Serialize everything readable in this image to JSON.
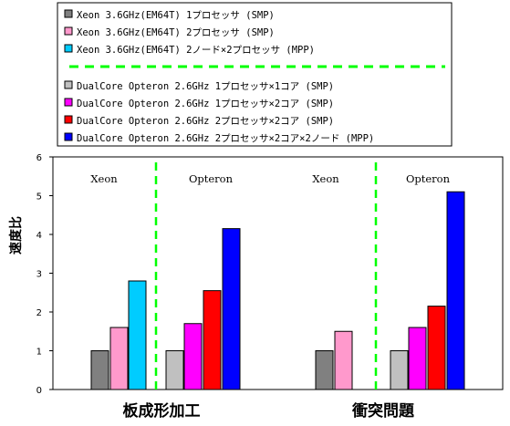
{
  "chart_data": {
    "type": "bar",
    "ylabel": "速度比",
    "ylim": [
      0,
      6
    ],
    "yticks": [
      "0",
      "1",
      "2",
      "3",
      "4",
      "5",
      "6"
    ],
    "grid": false,
    "legend_position": "top",
    "categories": [
      "板成形加工",
      "衝突問題"
    ],
    "group_labels": [
      {
        "category": "板成形加工",
        "side": "left",
        "text": "Xeon"
      },
      {
        "category": "板成形加工",
        "side": "right",
        "text": "Opteron"
      },
      {
        "category": "衝突問題",
        "side": "left",
        "text": "Xeon"
      },
      {
        "category": "衝突問題",
        "side": "right",
        "text": "Opteron"
      }
    ],
    "series": [
      {
        "name": "Xeon 3.6GHz(EM64T)  1プロセッサ (SMP)",
        "color": "#808080",
        "values": [
          1.0,
          1.0
        ]
      },
      {
        "name": "Xeon 3.6GHz(EM64T)  2プロセッサ (SMP)",
        "color": "#ff99cc",
        "values": [
          1.6,
          1.5
        ]
      },
      {
        "name": "Xeon 3.6GHz(EM64T)  2ノード×2プロセッサ (MPP)",
        "color": "#00ccff",
        "values": [
          2.8,
          null
        ]
      },
      {
        "name": "DualCore Opteron 2.6GHz  1プロセッサ×1コア (SMP)",
        "color": "#c0c0c0",
        "values": [
          1.0,
          1.0
        ]
      },
      {
        "name": "DualCore Opteron 2.6GHz  1プロセッサ×2コア (SMP)",
        "color": "#ff00ff",
        "values": [
          1.7,
          1.6
        ]
      },
      {
        "name": "DualCore Opteron 2.6GHz  2プロセッサ×2コア (SMP)",
        "color": "#ff0000",
        "values": [
          2.55,
          2.15
        ]
      },
      {
        "name": "DualCore Opteron 2.6GHz  2プロセッサ×2コア×2ノード (MPP)",
        "color": "#0000ff",
        "values": [
          4.15,
          5.1
        ]
      }
    ],
    "separator_color": "#00ff00"
  }
}
